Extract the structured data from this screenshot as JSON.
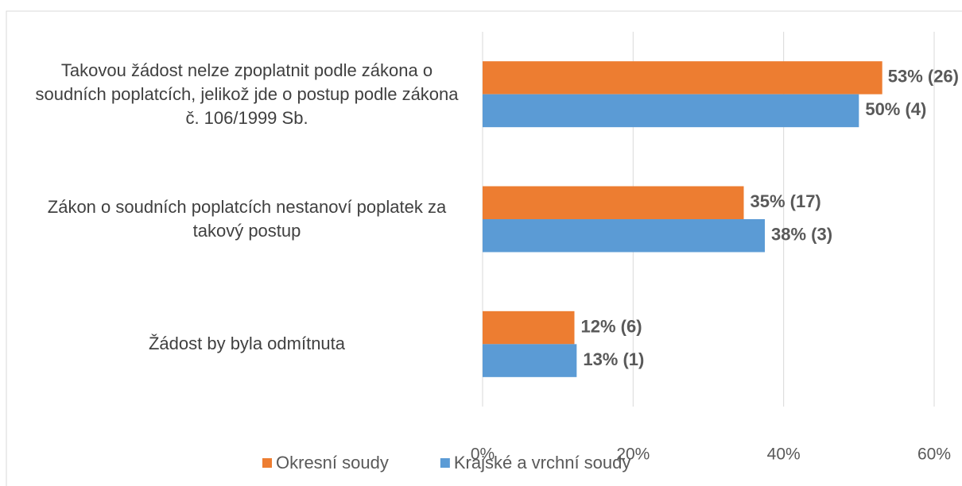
{
  "chart_data": {
    "type": "barh",
    "categories": [
      "Takovou žádost nelze zpoplatnit podle zákona o soudních poplatcích, jelikož jde o postup podle zákona č. 106/1999 Sb.",
      "Zákon o soudních poplatcích nestanoví poplatek za takový postup",
      "Žádost by byla odmítnuta"
    ],
    "series": [
      {
        "name": "Okresní soudy",
        "color": "#ed7d31",
        "values": [
          53.1,
          34.7,
          12.2
        ],
        "value_labels": [
          "53% (26)",
          "35% (17)",
          "12% (6)"
        ]
      },
      {
        "name": "Krajské a vrchní soudy",
        "color": "#5b9bd5",
        "values": [
          50,
          37.5,
          12.5
        ],
        "value_labels": [
          "50% (4)",
          "38% (3)",
          "13% (1)"
        ]
      }
    ],
    "xlim": [
      0,
      60
    ],
    "xticks": [
      {
        "value": 0,
        "label": "0%"
      },
      {
        "value": 20,
        "label": "20%"
      },
      {
        "value": 40,
        "label": "40%"
      },
      {
        "value": 60,
        "label": "60%"
      }
    ],
    "grid": true,
    "legend": "bottom"
  }
}
